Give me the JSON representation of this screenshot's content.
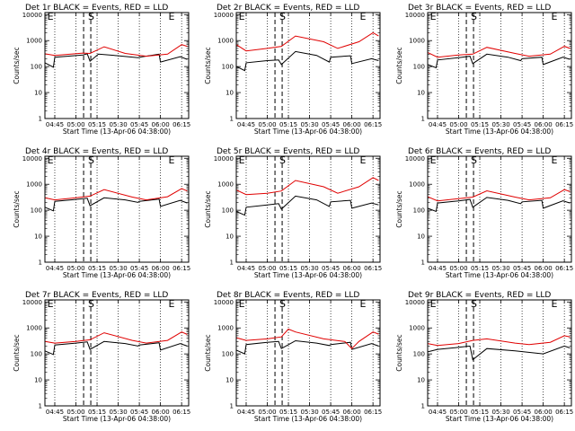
{
  "chart_data": [
    {
      "type": "line",
      "title": "Det 1r BLACK = Events, RED = LLD",
      "xlabel": "Start Time (13-Apr-06 04:38:00)",
      "ylabel": "Counts/sec",
      "yscale": "log",
      "ylim": [
        1,
        12000
      ],
      "xlim": [
        "04:38",
        "06:20"
      ],
      "x_tick_labels": [
        "04:45",
        "05:00",
        "05:15",
        "05:30",
        "05:45",
        "06:00",
        "06:15"
      ],
      "y_tick_labels": [
        "1",
        "10",
        "100",
        "1000",
        "10000"
      ],
      "markers": [
        {
          "label": "E",
          "time": "04:39"
        },
        {
          "label": "S",
          "time": "05:08"
        },
        {
          "label": "E",
          "time": "06:05"
        }
      ],
      "series": [
        {
          "color": "#000000",
          "x": [
            "04:38",
            "04:44",
            "04:45",
            "05:05",
            "05:08",
            "05:10",
            "05:16",
            "05:30",
            "05:44",
            "05:45",
            "05:59",
            "06:00",
            "06:14",
            "06:19"
          ],
          "values": [
            140,
            95,
            230,
            280,
            310,
            160,
            300,
            260,
            220,
            230,
            300,
            150,
            240,
            190
          ]
        },
        {
          "color": "#e00000",
          "x": [
            "04:38",
            "04:45",
            "05:05",
            "05:10",
            "05:20",
            "05:35",
            "05:50",
            "06:05",
            "06:15",
            "06:19"
          ],
          "values": [
            310,
            270,
            330,
            320,
            580,
            320,
            250,
            300,
            700,
            600
          ]
        }
      ]
    },
    {
      "type": "line",
      "title": "Det 2r BLACK = Events, RED = LLD",
      "xlabel": "Start Time (13-Apr-06 04:38:00)",
      "ylabel": "Counts/sec",
      "yscale": "log",
      "ylim": [
        1,
        12000
      ],
      "xlim": [
        "04:38",
        "06:20"
      ],
      "x_tick_labels": [
        "04:45",
        "05:00",
        "05:15",
        "05:30",
        "05:45",
        "06:00",
        "06:15"
      ],
      "y_tick_labels": [
        "1",
        "10",
        "100",
        "1000",
        "10000"
      ],
      "markers": [
        {
          "label": "E",
          "time": "04:39"
        },
        {
          "label": "S",
          "time": "05:08"
        },
        {
          "label": "E",
          "time": "06:05"
        }
      ],
      "series": [
        {
          "color": "#000000",
          "x": [
            "04:38",
            "04:44",
            "04:45",
            "05:00",
            "05:08",
            "05:10",
            "05:20",
            "05:35",
            "05:44",
            "05:45",
            "05:59",
            "06:00",
            "06:14",
            "06:19"
          ],
          "values": [
            100,
            70,
            140,
            170,
            180,
            120,
            380,
            270,
            150,
            230,
            260,
            130,
            200,
            170
          ]
        },
        {
          "color": "#e00000",
          "x": [
            "04:38",
            "04:45",
            "05:00",
            "05:10",
            "05:20",
            "05:40",
            "05:50",
            "06:05",
            "06:15",
            "06:19"
          ],
          "values": [
            700,
            400,
            500,
            600,
            1500,
            900,
            500,
            900,
            2000,
            1500
          ]
        }
      ]
    },
    {
      "type": "line",
      "title": "Det 3r BLACK = Events, RED = LLD",
      "xlabel": "Start Time (13-Apr-06 04:38:00)",
      "ylabel": "Counts/sec",
      "yscale": "log",
      "ylim": [
        1,
        12000
      ],
      "xlim": [
        "04:38",
        "06:20"
      ],
      "x_tick_labels": [
        "04:45",
        "05:00",
        "05:15",
        "05:30",
        "05:45",
        "06:00",
        "06:15"
      ],
      "y_tick_labels": [
        "1",
        "10",
        "100",
        "1000",
        "10000"
      ],
      "markers": [
        {
          "label": "E",
          "time": "04:39"
        },
        {
          "label": "S",
          "time": "05:08"
        },
        {
          "label": "E",
          "time": "06:05"
        }
      ],
      "series": [
        {
          "color": "#000000",
          "x": [
            "04:38",
            "04:44",
            "04:45",
            "05:00",
            "05:08",
            "05:10",
            "05:20",
            "05:35",
            "05:44",
            "05:45",
            "05:59",
            "06:00",
            "06:14",
            "06:19"
          ],
          "values": [
            120,
            90,
            180,
            220,
            250,
            130,
            300,
            230,
            170,
            200,
            230,
            120,
            230,
            190
          ]
        },
        {
          "color": "#e00000",
          "x": [
            "04:38",
            "04:45",
            "05:00",
            "05:10",
            "05:20",
            "05:40",
            "05:50",
            "06:05",
            "06:15",
            "06:19"
          ],
          "values": [
            350,
            230,
            280,
            300,
            550,
            320,
            250,
            300,
            600,
            500
          ]
        }
      ]
    },
    {
      "type": "line",
      "title": "Det 4r BLACK = Events, RED = LLD",
      "xlabel": "Start Time (13-Apr-06 04:38:00)",
      "ylabel": "Counts/sec",
      "yscale": "log",
      "ylim": [
        1,
        12000
      ],
      "xlim": [
        "04:38",
        "06:20"
      ],
      "x_tick_labels": [
        "04:45",
        "05:00",
        "05:15",
        "05:30",
        "05:45",
        "06:00",
        "06:15"
      ],
      "y_tick_labels": [
        "1",
        "10",
        "100",
        "1000",
        "10000"
      ],
      "markers": [
        {
          "label": "E",
          "time": "04:39"
        },
        {
          "label": "S",
          "time": "05:08"
        },
        {
          "label": "E",
          "time": "06:05"
        }
      ],
      "series": [
        {
          "color": "#000000",
          "x": [
            "04:38",
            "04:44",
            "04:45",
            "05:00",
            "05:08",
            "05:10",
            "05:20",
            "05:35",
            "05:44",
            "05:45",
            "05:59",
            "06:00",
            "06:14",
            "06:19"
          ],
          "values": [
            130,
            95,
            220,
            260,
            290,
            150,
            300,
            250,
            200,
            220,
            270,
            140,
            240,
            190
          ]
        },
        {
          "color": "#e00000",
          "x": [
            "04:38",
            "04:45",
            "05:00",
            "05:10",
            "05:20",
            "05:40",
            "05:50",
            "06:05",
            "06:15",
            "06:19"
          ],
          "values": [
            300,
            250,
            300,
            350,
            620,
            320,
            250,
            330,
            680,
            550
          ]
        }
      ]
    },
    {
      "type": "line",
      "title": "Det 5r BLACK = Events, RED = LLD",
      "xlabel": "Start Time (13-Apr-06 04:38:00)",
      "ylabel": "Counts/sec",
      "yscale": "log",
      "ylim": [
        1,
        12000
      ],
      "xlim": [
        "04:38",
        "06:20"
      ],
      "x_tick_labels": [
        "04:45",
        "05:00",
        "05:15",
        "05:30",
        "05:45",
        "06:00",
        "06:15"
      ],
      "y_tick_labels": [
        "1",
        "10",
        "100",
        "1000",
        "10000"
      ],
      "markers": [
        {
          "label": "E",
          "time": "04:39"
        },
        {
          "label": "S",
          "time": "05:08"
        },
        {
          "label": "E",
          "time": "06:05"
        }
      ],
      "series": [
        {
          "color": "#000000",
          "x": [
            "04:38",
            "04:44",
            "04:45",
            "05:00",
            "05:08",
            "05:10",
            "05:20",
            "05:35",
            "05:44",
            "05:45",
            "05:59",
            "06:00",
            "06:14",
            "06:19"
          ],
          "values": [
            90,
            65,
            130,
            160,
            180,
            110,
            350,
            250,
            140,
            210,
            240,
            120,
            190,
            160
          ]
        },
        {
          "color": "#e00000",
          "x": [
            "04:38",
            "04:45",
            "05:00",
            "05:10",
            "05:20",
            "05:40",
            "05:50",
            "06:05",
            "06:15",
            "06:19"
          ],
          "values": [
            600,
            400,
            450,
            550,
            1400,
            800,
            450,
            800,
            1800,
            1400
          ]
        }
      ]
    },
    {
      "type": "line",
      "title": "Det 6r BLACK = Events, RED = LLD",
      "xlabel": "Start Time (13-Apr-06 04:38:00)",
      "ylabel": "Counts/sec",
      "yscale": "log",
      "ylim": [
        1,
        12000
      ],
      "xlim": [
        "04:38",
        "06:20"
      ],
      "x_tick_labels": [
        "04:45",
        "05:00",
        "05:15",
        "05:30",
        "05:45",
        "06:00",
        "06:15"
      ],
      "y_tick_labels": [
        "1",
        "10",
        "100",
        "1000",
        "10000"
      ],
      "markers": [
        {
          "label": "E",
          "time": "04:39"
        },
        {
          "label": "S",
          "time": "05:08"
        },
        {
          "label": "E",
          "time": "06:05"
        }
      ],
      "series": [
        {
          "color": "#000000",
          "x": [
            "04:38",
            "04:44",
            "04:45",
            "05:00",
            "05:08",
            "05:10",
            "05:20",
            "05:35",
            "05:44",
            "05:45",
            "05:59",
            "06:00",
            "06:14",
            "06:19"
          ],
          "values": [
            120,
            90,
            190,
            230,
            260,
            130,
            310,
            240,
            180,
            210,
            240,
            120,
            230,
            190
          ]
        },
        {
          "color": "#e00000",
          "x": [
            "04:38",
            "04:45",
            "05:00",
            "05:10",
            "05:20",
            "05:40",
            "05:50",
            "06:05",
            "06:15",
            "06:19"
          ],
          "values": [
            330,
            230,
            280,
            320,
            560,
            320,
            250,
            300,
            620,
            520
          ]
        }
      ]
    },
    {
      "type": "line",
      "title": "Det 7r BLACK = Events, RED = LLD",
      "xlabel": "Start Time (13-Apr-06 04:38:00)",
      "ylabel": "Counts/sec",
      "yscale": "log",
      "ylim": [
        1,
        12000
      ],
      "xlim": [
        "04:38",
        "06:20"
      ],
      "x_tick_labels": [
        "04:45",
        "05:00",
        "05:15",
        "05:30",
        "05:45",
        "06:00",
        "06:15"
      ],
      "y_tick_labels": [
        "1",
        "10",
        "100",
        "1000",
        "10000"
      ],
      "markers": [
        {
          "label": "E",
          "time": "04:39"
        },
        {
          "label": "S",
          "time": "05:08"
        },
        {
          "label": "E",
          "time": "06:05"
        }
      ],
      "series": [
        {
          "color": "#000000",
          "x": [
            "04:38",
            "04:44",
            "04:45",
            "05:00",
            "05:08",
            "05:10",
            "05:20",
            "05:35",
            "05:44",
            "05:45",
            "05:59",
            "06:00",
            "06:14",
            "06:19"
          ],
          "values": [
            130,
            95,
            220,
            260,
            290,
            150,
            300,
            250,
            200,
            220,
            270,
            140,
            250,
            200
          ]
        },
        {
          "color": "#e00000",
          "x": [
            "04:38",
            "04:45",
            "05:00",
            "05:10",
            "05:20",
            "05:40",
            "05:50",
            "06:05",
            "06:15",
            "06:19"
          ],
          "values": [
            300,
            260,
            300,
            350,
            650,
            330,
            260,
            330,
            700,
            560
          ]
        }
      ]
    },
    {
      "type": "line",
      "title": "Det 8r BLACK = Events, RED = LLD",
      "xlabel": "Start Time (13-Apr-06 04:38:00)",
      "ylabel": "Counts/sec",
      "yscale": "log",
      "ylim": [
        1,
        12000
      ],
      "xlim": [
        "04:38",
        "06:20"
      ],
      "x_tick_labels": [
        "04:45",
        "05:00",
        "05:15",
        "05:30",
        "05:45",
        "06:00",
        "06:15"
      ],
      "y_tick_labels": [
        "1",
        "10",
        "100",
        "1000",
        "10000"
      ],
      "markers": [
        {
          "label": "E",
          "time": "04:39"
        },
        {
          "label": "S",
          "time": "05:08"
        },
        {
          "label": "E",
          "time": "06:05"
        }
      ],
      "series": [
        {
          "color": "#000000",
          "x": [
            "04:38",
            "04:44",
            "04:45",
            "05:00",
            "05:08",
            "05:10",
            "05:20",
            "05:35",
            "05:44",
            "05:45",
            "05:59",
            "06:00",
            "06:14",
            "06:19"
          ],
          "values": [
            140,
            100,
            230,
            280,
            300,
            160,
            320,
            260,
            210,
            230,
            280,
            150,
            250,
            200
          ]
        },
        {
          "color": "#e00000",
          "x": [
            "04:38",
            "04:45",
            "05:00",
            "05:10",
            "05:15",
            "05:20",
            "05:40",
            "05:55",
            "06:00",
            "06:05",
            "06:15",
            "06:19"
          ],
          "values": [
            420,
            330,
            380,
            450,
            900,
            700,
            380,
            300,
            160,
            300,
            700,
            580
          ]
        }
      ]
    },
    {
      "type": "line",
      "title": "Det 9r BLACK = Events, RED = LLD",
      "xlabel": "Start Time (13-Apr-06 04:38:00)",
      "ylabel": "Counts/sec",
      "yscale": "log",
      "ylim": [
        1,
        12000
      ],
      "xlim": [
        "04:38",
        "06:20"
      ],
      "x_tick_labels": [
        "04:45",
        "05:00",
        "05:15",
        "05:30",
        "05:45",
        "06:00",
        "06:15"
      ],
      "y_tick_labels": [
        "1",
        "10",
        "100",
        "1000",
        "10000"
      ],
      "markers": [
        {
          "label": "E",
          "time": "04:39"
        },
        {
          "label": "S",
          "time": "05:08"
        },
        {
          "label": "E",
          "time": "06:05"
        }
      ],
      "series": [
        {
          "color": "#000000",
          "x": [
            "04:38",
            "04:45",
            "05:00",
            "05:08",
            "05:10",
            "05:20",
            "05:40",
            "06:00",
            "06:15",
            "06:19"
          ],
          "values": [
            120,
            150,
            180,
            200,
            60,
            160,
            130,
            100,
            200,
            170
          ]
        },
        {
          "color": "#e00000",
          "x": [
            "04:38",
            "04:45",
            "05:00",
            "05:10",
            "05:20",
            "05:40",
            "05:50",
            "06:05",
            "06:15",
            "06:19"
          ],
          "values": [
            250,
            210,
            250,
            330,
            380,
            260,
            230,
            280,
            500,
            450
          ]
        }
      ]
    }
  ]
}
